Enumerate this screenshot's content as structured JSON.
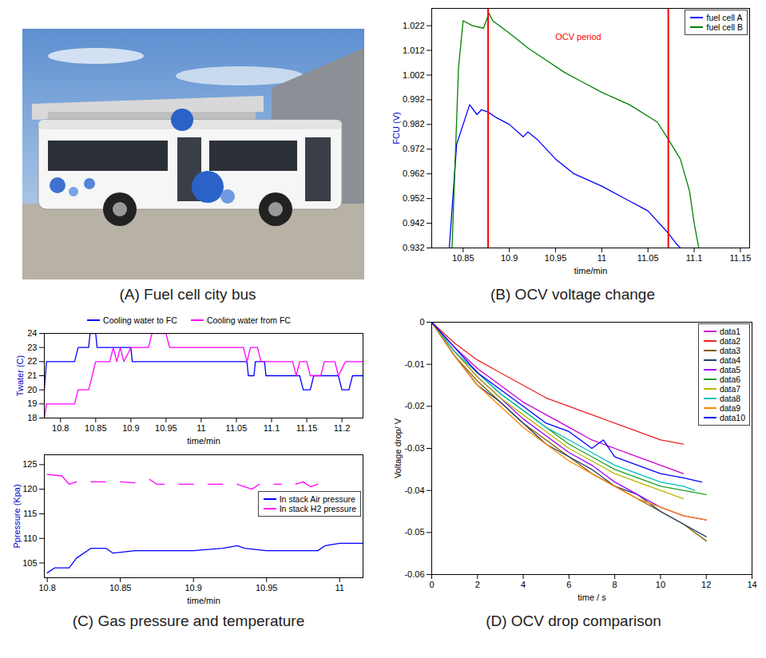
{
  "chart_data": [
    {
      "type": "image",
      "title": "(A) Fuel cell city bus"
    },
    {
      "type": "line",
      "title": "(B) OCV voltage change",
      "xlabel": "time/min",
      "ylabel": "FCU (V)",
      "xlim": [
        10.816,
        11.16
      ],
      "ylim": [
        0.932,
        1.029
      ],
      "xticks": [
        10.85,
        10.9,
        10.95,
        11,
        11.05,
        11.1,
        11.15
      ],
      "yticks": [
        0.932,
        0.942,
        0.952,
        0.962,
        0.972,
        0.982,
        0.992,
        1.002,
        1.012,
        1.022
      ],
      "legend": "upper right",
      "vlines": {
        "values": [
          10.877,
          11.072
        ],
        "color": "red",
        "annotation": "OCV period"
      },
      "series": [
        {
          "name": "fuel cell A",
          "color": "#0000ff",
          "x": [
            10.835,
            10.843,
            10.85,
            10.857,
            10.865,
            10.87,
            10.877,
            10.885,
            10.9,
            10.915,
            10.92,
            10.93,
            10.95,
            10.97,
            11.0,
            11.03,
            11.05,
            11.072,
            11.08,
            11.085
          ],
          "values": [
            0.932,
            0.974,
            0.982,
            0.99,
            0.986,
            0.988,
            0.987,
            0.985,
            0.982,
            0.977,
            0.979,
            0.976,
            0.968,
            0.962,
            0.957,
            0.951,
            0.947,
            0.938,
            0.934,
            0.932
          ]
        },
        {
          "name": "fuel cell B",
          "color": "#008000",
          "x": [
            10.838,
            10.845,
            10.85,
            10.86,
            10.872,
            10.878,
            10.882,
            10.9,
            10.92,
            10.94,
            10.96,
            10.98,
            11.0,
            11.03,
            11.06,
            11.072,
            11.085,
            11.095,
            11.1,
            11.105
          ],
          "values": [
            0.932,
            1.005,
            1.024,
            1.022,
            1.021,
            1.027,
            1.024,
            1.019,
            1.013,
            1.008,
            1.003,
            0.999,
            0.995,
            0.99,
            0.983,
            0.976,
            0.968,
            0.955,
            0.942,
            0.932
          ]
        }
      ]
    },
    {
      "type": "line",
      "title": "(C) Gas pressure and temperature",
      "charts": [
        {
          "type": "line",
          "xlabel": "time/min",
          "ylabel": "Twater (C)",
          "xlim": [
            10.777,
            11.23
          ],
          "ylim": [
            18,
            24
          ],
          "xticks": [
            10.8,
            10.85,
            10.9,
            10.95,
            11,
            11.05,
            11.1,
            11.15,
            11.2
          ],
          "yticks": [
            18,
            19,
            20,
            21,
            22,
            23,
            24
          ],
          "legend": "top",
          "series": [
            {
              "name": "Cooling water to FC",
              "color": "#0000ff",
              "x": [
                10.777,
                10.78,
                10.82,
                10.825,
                10.84,
                10.842,
                10.85,
                10.852,
                10.9,
                10.902,
                11.065,
                11.067,
                11.075,
                11.077,
                11.09,
                11.092,
                11.14,
                11.145,
                11.155,
                11.16,
                11.195,
                11.2,
                11.21,
                11.215,
                11.23
              ],
              "values": [
                20,
                22,
                22,
                23,
                23,
                24,
                24,
                23,
                23,
                22,
                22,
                21,
                21,
                22,
                22,
                21,
                21,
                20,
                20,
                21,
                21,
                20,
                20,
                21,
                21
              ]
            },
            {
              "name": "Cooling water from FC",
              "color": "#ff00ff",
              "x": [
                10.777,
                10.78,
                10.82,
                10.825,
                10.84,
                10.845,
                10.85,
                10.87,
                10.875,
                10.88,
                10.885,
                10.89,
                10.9,
                10.925,
                10.93,
                10.95,
                10.955,
                11.06,
                11.065,
                11.07,
                11.08,
                11.085,
                11.13,
                11.135,
                11.14,
                11.15,
                11.155,
                11.17,
                11.175,
                11.19,
                11.195,
                11.205,
                11.22,
                11.23
              ],
              "values": [
                18,
                19,
                19,
                20,
                20,
                21,
                22,
                22,
                23,
                22,
                23,
                22,
                23,
                23,
                24,
                24,
                23,
                23,
                22,
                23,
                23,
                22,
                22,
                21,
                22,
                22,
                21,
                21,
                22,
                22,
                21,
                22,
                22,
                22
              ]
            }
          ]
        },
        {
          "type": "line",
          "xlabel": "time/min",
          "ylabel": "Ppressure (Kpa)",
          "xlim": [
            10.798,
            11.016
          ],
          "ylim": [
            102,
            127
          ],
          "xticks": [
            10.8,
            10.85,
            10.9,
            10.95,
            11
          ],
          "yticks": [
            105,
            110,
            115,
            120,
            125
          ],
          "legend": "right",
          "series": [
            {
              "name": "In stack Air pressure",
              "color": "#0000ff",
              "x": [
                10.8,
                10.805,
                10.815,
                10.82,
                10.83,
                10.84,
                10.845,
                10.86,
                10.88,
                10.9,
                10.92,
                10.93,
                10.935,
                10.95,
                10.97,
                10.985,
                10.99,
                11.0,
                11.016
              ],
              "values": [
                103,
                104,
                104,
                106,
                108,
                108,
                107,
                107.5,
                107.5,
                107.5,
                108,
                108.5,
                108,
                107.5,
                107.5,
                107.5,
                108.5,
                109,
                109
              ]
            },
            {
              "name": "In stack H2 pressure",
              "color": "#ff00ff",
              "x": [
                10.8,
                10.81,
                10.815,
                10.82,
                10.825,
                10.83,
                10.84,
                10.845,
                10.85,
                10.86,
                10.865,
                10.87,
                10.875,
                10.88,
                10.885,
                10.89,
                10.9,
                10.905,
                10.91,
                10.92,
                10.925,
                10.93,
                10.935,
                10.94,
                10.945,
                10.95,
                10.955,
                10.96,
                10.965,
                10.97,
                10.975,
                10.98,
                10.985
              ],
              "values": [
                123,
                122.7,
                121,
                121.5,
                null,
                121.5,
                121.5,
                null,
                121.5,
                121.3,
                null,
                122,
                121,
                121,
                null,
                121,
                121,
                null,
                121,
                121,
                null,
                121,
                120.5,
                120,
                121,
                null,
                121,
                121,
                null,
                121,
                121.5,
                120.5,
                121
              ]
            }
          ]
        }
      ]
    },
    {
      "type": "line",
      "title": "(D) OCV drop comparison",
      "xlabel": "time / s",
      "ylabel": "Voltage drop/ V",
      "xlim": [
        0,
        14
      ],
      "ylim": [
        -0.06,
        0
      ],
      "xticks": [
        0,
        2,
        4,
        6,
        8,
        10,
        12,
        14
      ],
      "yticks": [
        -0.06,
        -0.05,
        -0.04,
        -0.03,
        -0.02,
        -0.01,
        0
      ],
      "legend": "upper right",
      "series": [
        {
          "name": "data1",
          "color": "#cc00cc",
          "x": [
            0,
            1,
            2,
            3,
            4,
            5,
            6,
            7,
            8,
            9,
            10,
            11
          ],
          "values": [
            0,
            -0.006,
            -0.011,
            -0.015,
            -0.019,
            -0.022,
            -0.025,
            -0.028,
            -0.03,
            -0.032,
            -0.034,
            -0.036
          ]
        },
        {
          "name": "data2",
          "color": "#ee2222",
          "x": [
            0,
            1,
            2,
            3,
            4,
            5,
            6,
            7,
            8,
            9,
            10,
            11
          ],
          "values": [
            0,
            -0.005,
            -0.009,
            -0.012,
            -0.015,
            -0.018,
            -0.02,
            -0.022,
            -0.024,
            -0.026,
            -0.028,
            -0.029
          ]
        },
        {
          "name": "data3",
          "color": "#7f5f00",
          "x": [
            0,
            1,
            2,
            3,
            4,
            5,
            6,
            7,
            8,
            9,
            10,
            11,
            12
          ],
          "values": [
            0,
            -0.008,
            -0.014,
            -0.019,
            -0.024,
            -0.028,
            -0.032,
            -0.036,
            -0.039,
            -0.042,
            -0.045,
            -0.048,
            -0.052
          ]
        },
        {
          "name": "data4",
          "color": "#1f3f6f",
          "x": [
            0,
            1,
            2,
            3,
            4,
            5,
            6,
            7,
            8,
            9,
            10,
            11,
            12
          ],
          "values": [
            0,
            -0.008,
            -0.015,
            -0.019,
            -0.024,
            -0.029,
            -0.032,
            -0.035,
            -0.039,
            -0.041,
            -0.045,
            -0.048,
            -0.051
          ]
        },
        {
          "name": "data5",
          "color": "#9900ff",
          "x": [
            0,
            1,
            2,
            3,
            4,
            5,
            6,
            7,
            8,
            9,
            10,
            11,
            12
          ],
          "values": [
            0,
            -0.007,
            -0.013,
            -0.018,
            -0.023,
            -0.027,
            -0.031,
            -0.034,
            -0.038,
            -0.041,
            -0.044,
            -0.046,
            -0.047
          ]
        },
        {
          "name": "data6",
          "color": "#1f9f1f",
          "x": [
            0,
            1,
            2,
            3,
            4,
            5,
            6,
            7,
            8,
            9,
            10,
            11,
            12
          ],
          "values": [
            0,
            -0.007,
            -0.012,
            -0.017,
            -0.021,
            -0.025,
            -0.029,
            -0.032,
            -0.035,
            -0.037,
            -0.039,
            -0.04,
            -0.041
          ]
        },
        {
          "name": "data7",
          "color": "#b8b800",
          "x": [
            0,
            1,
            2,
            3,
            4,
            5,
            6,
            7,
            8,
            9,
            10,
            11
          ],
          "values": [
            0,
            -0.007,
            -0.013,
            -0.018,
            -0.022,
            -0.026,
            -0.03,
            -0.033,
            -0.036,
            -0.038,
            -0.04,
            -0.042
          ]
        },
        {
          "name": "data8",
          "color": "#00bfbf",
          "x": [
            0,
            1,
            2,
            3,
            4,
            5,
            6,
            7,
            8,
            9,
            10,
            11,
            11.5
          ],
          "values": [
            0,
            -0.007,
            -0.012,
            -0.017,
            -0.021,
            -0.025,
            -0.028,
            -0.031,
            -0.034,
            -0.036,
            -0.038,
            -0.039,
            -0.04
          ]
        },
        {
          "name": "data9",
          "color": "#ff8800",
          "x": [
            0,
            1,
            2,
            3,
            4,
            5,
            6,
            7,
            8,
            9,
            10,
            11,
            12
          ],
          "values": [
            0,
            -0.008,
            -0.015,
            -0.02,
            -0.025,
            -0.029,
            -0.033,
            -0.036,
            -0.039,
            -0.042,
            -0.044,
            -0.046,
            -0.047
          ]
        },
        {
          "name": "data10",
          "color": "#0000ff",
          "x": [
            0,
            1,
            2,
            3,
            4,
            5,
            6,
            7,
            7.5,
            8,
            9,
            10,
            11,
            11.8
          ],
          "values": [
            0,
            -0.006,
            -0.012,
            -0.016,
            -0.02,
            -0.024,
            -0.026,
            -0.03,
            -0.028,
            -0.032,
            -0.034,
            -0.036,
            -0.037,
            -0.038
          ]
        }
      ]
    }
  ]
}
